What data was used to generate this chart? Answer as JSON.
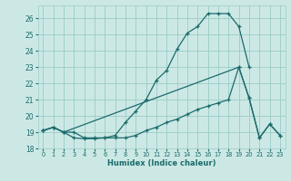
{
  "xlabel": "Humidex (Indice chaleur)",
  "bg_color": "#cce8e5",
  "grid_color": "#99ccc8",
  "line_color": "#1a6b6b",
  "xlim": [
    -0.5,
    23.5
  ],
  "ylim": [
    18,
    26.8
  ],
  "yticks": [
    18,
    19,
    20,
    21,
    22,
    23,
    24,
    25,
    26
  ],
  "xticks": [
    0,
    1,
    2,
    3,
    4,
    5,
    6,
    7,
    8,
    9,
    10,
    11,
    12,
    13,
    14,
    15,
    16,
    17,
    18,
    19,
    20,
    21,
    22,
    23
  ],
  "line1_x": [
    0,
    1,
    2,
    3,
    4,
    5,
    6,
    7,
    8,
    9,
    10,
    11,
    12,
    13,
    14,
    15,
    16,
    17,
    18,
    19,
    20
  ],
  "line1_y": [
    19.1,
    19.3,
    19.0,
    18.65,
    18.6,
    18.6,
    18.65,
    18.8,
    19.6,
    20.3,
    21.0,
    22.2,
    22.8,
    24.1,
    25.1,
    25.5,
    26.3,
    26.3,
    26.3,
    25.5,
    23.0
  ],
  "line2_x": [
    0,
    1,
    2,
    3,
    4,
    5,
    6,
    7,
    8,
    9,
    10,
    11,
    12,
    13,
    14,
    15,
    16,
    17,
    18,
    19,
    20,
    21,
    22,
    23
  ],
  "line2_y": [
    19.1,
    19.3,
    19.0,
    19.0,
    18.65,
    18.65,
    18.65,
    18.65,
    18.65,
    18.8,
    19.1,
    19.3,
    19.6,
    19.8,
    20.1,
    20.4,
    20.6,
    20.8,
    21.0,
    23.0,
    21.1,
    18.65,
    19.5,
    18.8
  ],
  "line3_x": [
    0,
    1,
    2,
    19,
    20,
    21,
    22,
    23
  ],
  "line3_y": [
    19.1,
    19.3,
    19.0,
    23.0,
    21.1,
    18.65,
    19.5,
    18.8
  ]
}
